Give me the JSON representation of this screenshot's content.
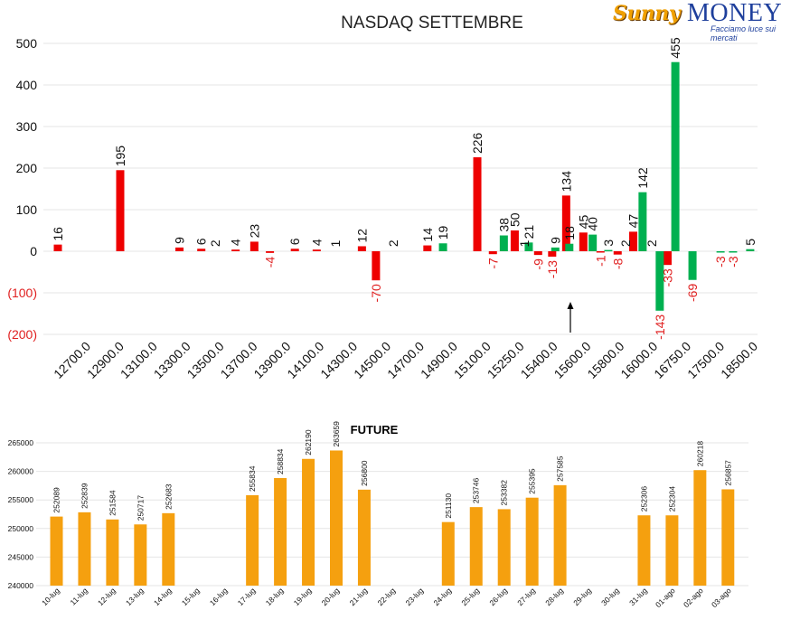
{
  "logo": {
    "script": "Sunny",
    "word": "MONEY",
    "tagline": "Facciamo luce sui mercati"
  },
  "chart_data": [
    {
      "type": "bar",
      "title": "NASDAQ SETTEMBRE",
      "ylim": [
        -200,
        500
      ],
      "yticks": [
        500,
        400,
        300,
        200,
        100,
        0,
        -100,
        -200
      ],
      "ytick_labels": [
        "500",
        "400",
        "300",
        "200",
        "100",
        "0",
        "(100)",
        "(200)"
      ],
      "x_tick_labels": [
        "12700.0",
        "12900.0",
        "13100.0",
        "13300.0",
        "13500.0",
        "13700.0",
        "13900.0",
        "14100.0",
        "14300.0",
        "14500.0",
        "14700.0",
        "14900.0",
        "15100.0",
        "15250.0",
        "15400.0",
        "15600.0",
        "15800.0",
        "16000.0",
        "16750.0",
        "17500.0",
        "18500.0"
      ],
      "grid": true,
      "colors": {
        "red": "#ee0000",
        "green": "#00b050",
        "negative_label": "#e02020"
      },
      "annotation": "arrow pointing up at 15600",
      "series": [
        {
          "color_key": "red",
          "points": [
            [
              0,
              16
            ],
            [
              2,
              195
            ],
            [
              3.9,
              9
            ],
            [
              4.6,
              6
            ],
            [
              5.7,
              4
            ],
            [
              6.3,
              23
            ],
            [
              6.8,
              -4
            ],
            [
              7.6,
              6
            ],
            [
              8.3,
              4
            ],
            [
              9.75,
              12
            ],
            [
              10.2,
              -70
            ],
            [
              11.85,
              14
            ],
            [
              13.45,
              226
            ],
            [
              13.95,
              -7
            ],
            [
              14.65,
              50
            ],
            [
              15.4,
              -9
            ],
            [
              15.85,
              -13
            ],
            [
              16.3,
              134
            ],
            [
              16.85,
              45
            ],
            [
              17.4,
              -1
            ],
            [
              17.95,
              -8
            ],
            [
              18.45,
              47
            ],
            [
              19.55,
              -33
            ]
          ]
        },
        {
          "color_key": "green",
          "points": [
            [
              12.35,
              19
            ],
            [
              14.3,
              38
            ],
            [
              15.1,
              21
            ],
            [
              15.95,
              9
            ],
            [
              16.4,
              18
            ],
            [
              17.15,
              40
            ],
            [
              17.65,
              3
            ],
            [
              18.75,
              142
            ],
            [
              19.3,
              -143
            ],
            [
              19.8,
              455
            ],
            [
              20.35,
              -69
            ],
            [
              21.25,
              -3
            ],
            [
              21.65,
              -3
            ],
            [
              22.2,
              5
            ]
          ]
        }
      ],
      "labels": [
        {
          "x": 0,
          "text": "16",
          "neg": false
        },
        {
          "x": 2,
          "text": "195",
          "neg": false
        },
        {
          "x": 3.9,
          "text": "9",
          "neg": false
        },
        {
          "x": 4.6,
          "text": "6",
          "neg": false
        },
        {
          "x": 5.05,
          "text": "2",
          "neg": false
        },
        {
          "x": 5.7,
          "text": "4",
          "neg": false
        },
        {
          "x": 6.3,
          "text": "23",
          "neg": false
        },
        {
          "x": 6.8,
          "text": "-4",
          "neg": true
        },
        {
          "x": 7.6,
          "text": "6",
          "neg": false
        },
        {
          "x": 8.3,
          "text": "4",
          "neg": false
        },
        {
          "x": 8.9,
          "text": "1",
          "neg": false
        },
        {
          "x": 9.75,
          "text": "12",
          "neg": false
        },
        {
          "x": 10.2,
          "text": "-70",
          "neg": true
        },
        {
          "x": 10.75,
          "text": "2",
          "neg": false
        },
        {
          "x": 11.85,
          "text": "14",
          "neg": false
        },
        {
          "x": 12.35,
          "text": "19",
          "neg": false
        },
        {
          "x": 13.45,
          "text": "226",
          "neg": false
        },
        {
          "x": 13.95,
          "text": "-7",
          "neg": true
        },
        {
          "x": 14.3,
          "text": "38",
          "neg": false
        },
        {
          "x": 14.65,
          "text": "50",
          "neg": false
        },
        {
          "x": 14.95,
          "text": "1",
          "neg": false
        },
        {
          "x": 15.1,
          "text": "21",
          "neg": false
        },
        {
          "x": 15.4,
          "text": "-9",
          "neg": true
        },
        {
          "x": 15.85,
          "text": "-13",
          "neg": true
        },
        {
          "x": 15.95,
          "text": "9",
          "neg": false
        },
        {
          "x": 16.3,
          "text": "134",
          "neg": false
        },
        {
          "x": 16.4,
          "text": "18",
          "neg": false
        },
        {
          "x": 16.85,
          "text": "45",
          "neg": false
        },
        {
          "x": 17.15,
          "text": "40",
          "neg": false
        },
        {
          "x": 17.4,
          "text": "-1",
          "neg": true
        },
        {
          "x": 17.65,
          "text": "3",
          "neg": false
        },
        {
          "x": 17.95,
          "text": "-8",
          "neg": true
        },
        {
          "x": 18.2,
          "text": "2",
          "neg": false
        },
        {
          "x": 18.45,
          "text": "47",
          "neg": false
        },
        {
          "x": 18.75,
          "text": "142",
          "neg": false
        },
        {
          "x": 19.05,
          "text": "2",
          "neg": false
        },
        {
          "x": 19.3,
          "text": "-143",
          "neg": true
        },
        {
          "x": 19.55,
          "text": "-33",
          "neg": true
        },
        {
          "x": 19.8,
          "text": "455",
          "neg": false
        },
        {
          "x": 20.35,
          "text": "-69",
          "neg": true
        },
        {
          "x": 21.25,
          "text": "-3",
          "neg": true
        },
        {
          "x": 21.65,
          "text": "-3",
          "neg": true
        },
        {
          "x": 22.2,
          "text": "5",
          "neg": false
        }
      ]
    },
    {
      "type": "bar",
      "title": "FUTURE",
      "ylim": [
        240000,
        265000
      ],
      "yticks": [
        265000,
        260000,
        255000,
        250000,
        245000,
        240000
      ],
      "grid": true,
      "color": "#f5a00f",
      "categories": [
        "10-lug",
        "11-lug",
        "12-lug",
        "13-lug",
        "14-lug",
        "15-lug",
        "16-lug",
        "17-lug",
        "18-lug",
        "19-lug",
        "20-lug",
        "21-lug",
        "22-lug",
        "23-lug",
        "24-lug",
        "25-lug",
        "26-lug",
        "27-lug",
        "28-lug",
        "29-lug",
        "30-lug",
        "31-lug",
        "01-ago",
        "02-ago",
        "03-ago"
      ],
      "values": [
        252089,
        252839,
        251584,
        250717,
        252683,
        null,
        null,
        255834,
        258834,
        262190,
        263659,
        256800,
        null,
        null,
        251130,
        253746,
        253382,
        255395,
        257585,
        null,
        null,
        252306,
        252304,
        260218,
        256857
      ]
    }
  ]
}
